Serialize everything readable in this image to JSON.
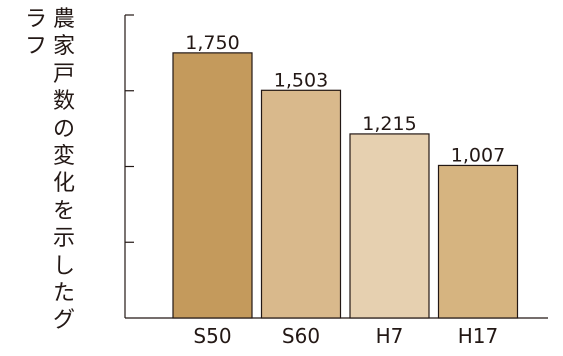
{
  "chart_data": {
    "type": "bar",
    "title": "",
    "ylabel": "農家戸数の変化を示したグラフ",
    "ylabel_col1": "農家戸数の変化を示したグ",
    "ylabel_col2": "ラフ",
    "xlabel": "",
    "categories": [
      "S50",
      "S60",
      "H7",
      "H17"
    ],
    "values": [
      1750,
      1503,
      1215,
      1007
    ],
    "value_labels": [
      "1,750",
      "1,503",
      "1,215",
      "1,007"
    ],
    "ylim": [
      0,
      2000
    ],
    "yticks": [
      0,
      500,
      1000,
      1500,
      2000
    ],
    "ytick_labels_shown": false,
    "grid": false,
    "legend": "none",
    "colors": [
      "#c49a5c",
      "#d9b98c",
      "#e6d0b0",
      "#d6b480"
    ],
    "edge_color": "#231815"
  }
}
